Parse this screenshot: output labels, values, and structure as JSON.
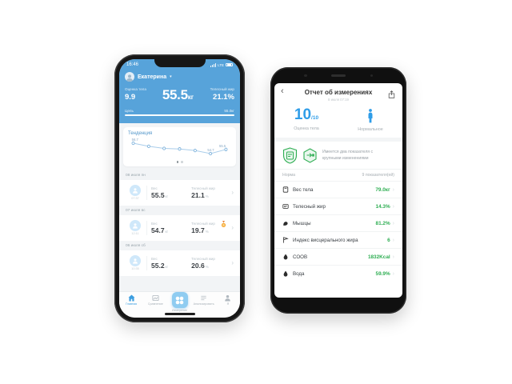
{
  "left_phone": {
    "status_bar": {
      "time": "16:46",
      "network": "LTE"
    },
    "header": {
      "user_name": "Екатерина",
      "score_label": "Оценка тела",
      "score": "9.9",
      "weight": "55.5",
      "weight_unit": "кг",
      "fat_label": "Телесный жир",
      "fat": "21.1%",
      "goal_label": "Цель",
      "goal_value": "55.0кг"
    },
    "trend": {
      "title": "Тенденция"
    },
    "sections": [
      {
        "date": "08 июля пн",
        "time": "07:37",
        "weight_label": "Вес",
        "weight": "55.5",
        "weight_unit": "кг",
        "fat_label": "Телесный жир",
        "fat": "21.1",
        "fat_unit": "%"
      },
      {
        "date": "07 июля вс",
        "time": "12:11",
        "weight_label": "Вес",
        "weight": "54.7",
        "weight_unit": "кг",
        "fat_label": "Телесный жир",
        "fat": "19.7",
        "fat_unit": "%"
      },
      {
        "date": "06 июля сб",
        "time": "10:35",
        "weight_label": "Вес",
        "weweight": "",
        "weight": "55.2",
        "weight_unit": "кг",
        "fat_label": "Телесный жир",
        "fat": "20.6",
        "fat_unit": "%"
      }
    ],
    "tab_bar": {
      "items": [
        {
          "label": "Главная"
        },
        {
          "label": "Сравнение"
        },
        {
          "label": "Измерение"
        },
        {
          "label": "Анализировать"
        },
        {
          "label": "Я"
        }
      ]
    }
  },
  "right_phone": {
    "header": {
      "back": "‹",
      "title": "Отчет об измерениях",
      "subtitle": "8 июля 07:19"
    },
    "score": {
      "value": "10",
      "denom": "/10",
      "label": "Оценка тела",
      "status_label": "Нормальное"
    },
    "insight_text": "Имеется два показателя с крупными изменениями",
    "norm_row": {
      "left": "Норма",
      "right": "9 показателя(ей)"
    },
    "metrics": [
      {
        "label": "Вес тела",
        "value": "79.0кг"
      },
      {
        "label": "Телесный жир",
        "value": "14.3%"
      },
      {
        "label": "Мышцы",
        "value": "81.2%"
      },
      {
        "label": "Индекс висцерального жира",
        "value": "6"
      },
      {
        "label": "СООВ",
        "value": "1832Kcal"
      },
      {
        "label": "Вода",
        "value": "59.9%"
      }
    ]
  },
  "chart_data": {
    "type": "line",
    "title": "Тенденция",
    "x": [
      1,
      2,
      3,
      4,
      5,
      6,
      7
    ],
    "values": [
      56.7,
      56.1,
      55.7,
      55.6,
      55.3,
      54.7,
      55.5
    ],
    "labeled_points": {
      "first": "56.7",
      "min": "54.7",
      "last": "55.5"
    },
    "ylim": [
      54.4,
      57.0
    ],
    "legend": "none",
    "grid": false
  },
  "colors": {
    "header_blue": "#57a3da",
    "accent_blue": "#2f9de8",
    "value_green": "#2fae53",
    "medal_gold": "#f6a937"
  }
}
